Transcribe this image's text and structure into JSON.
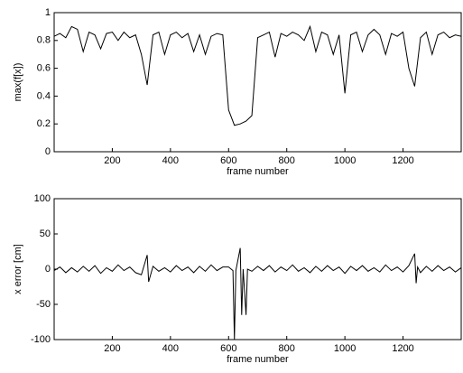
{
  "chart_data": [
    {
      "type": "line",
      "xlabel": "frame number",
      "ylabel": "max(f[x])",
      "xlim": [
        0,
        1400
      ],
      "ylim": [
        0,
        1
      ],
      "xticks": [
        200,
        400,
        600,
        800,
        1000,
        1200
      ],
      "yticks": [
        0,
        0.2,
        0.4,
        0.6,
        0.8,
        1
      ],
      "x": [
        0,
        20,
        40,
        60,
        80,
        100,
        120,
        140,
        160,
        180,
        200,
        220,
        240,
        260,
        280,
        300,
        320,
        340,
        360,
        380,
        400,
        420,
        440,
        460,
        480,
        500,
        520,
        540,
        560,
        580,
        600,
        620,
        640,
        660,
        680,
        700,
        720,
        740,
        760,
        780,
        800,
        820,
        840,
        860,
        880,
        900,
        920,
        940,
        960,
        980,
        1000,
        1020,
        1040,
        1060,
        1080,
        1100,
        1120,
        1140,
        1160,
        1180,
        1200,
        1220,
        1240,
        1260,
        1280,
        1300,
        1320,
        1340,
        1360,
        1380,
        1400
      ],
      "series": [
        {
          "color": "#000000",
          "values": [
            0.83,
            0.85,
            0.82,
            0.9,
            0.88,
            0.72,
            0.86,
            0.84,
            0.74,
            0.85,
            0.86,
            0.8,
            0.86,
            0.82,
            0.84,
            0.7,
            0.48,
            0.84,
            0.86,
            0.7,
            0.84,
            0.86,
            0.82,
            0.85,
            0.72,
            0.84,
            0.7,
            0.83,
            0.85,
            0.84,
            0.3,
            0.19,
            0.2,
            0.22,
            0.26,
            0.82,
            0.84,
            0.86,
            0.68,
            0.85,
            0.83,
            0.86,
            0.84,
            0.8,
            0.9,
            0.72,
            0.86,
            0.84,
            0.7,
            0.84,
            0.42,
            0.84,
            0.86,
            0.72,
            0.84,
            0.88,
            0.84,
            0.7,
            0.85,
            0.83,
            0.86,
            0.6,
            0.47,
            0.82,
            0.86,
            0.7,
            0.84,
            0.86,
            0.82,
            0.84,
            0.83
          ]
        }
      ]
    },
    {
      "type": "line",
      "xlabel": "frame number",
      "ylabel": "x error [cm]",
      "xlim": [
        0,
        1400
      ],
      "ylim": [
        -100,
        100
      ],
      "xticks": [
        200,
        400,
        600,
        800,
        1000,
        1200
      ],
      "yticks": [
        -100,
        -50,
        0,
        50,
        100
      ],
      "x": [
        0,
        20,
        40,
        60,
        80,
        100,
        120,
        140,
        160,
        180,
        200,
        220,
        240,
        260,
        280,
        300,
        320,
        325,
        340,
        360,
        380,
        400,
        420,
        440,
        460,
        480,
        500,
        520,
        540,
        560,
        580,
        600,
        615,
        620,
        625,
        640,
        645,
        650,
        660,
        665,
        680,
        700,
        720,
        740,
        760,
        780,
        800,
        820,
        840,
        860,
        880,
        900,
        920,
        940,
        960,
        980,
        1000,
        1020,
        1040,
        1060,
        1080,
        1100,
        1120,
        1140,
        1160,
        1180,
        1200,
        1220,
        1240,
        1245,
        1250,
        1260,
        1280,
        1300,
        1320,
        1340,
        1360,
        1380,
        1400
      ],
      "series": [
        {
          "color": "#000000",
          "values": [
            -2,
            3,
            -5,
            2,
            -4,
            4,
            -3,
            5,
            -6,
            2,
            -3,
            6,
            -2,
            3,
            -5,
            -8,
            20,
            -18,
            4,
            -3,
            2,
            -4,
            5,
            -2,
            3,
            -5,
            4,
            -3,
            6,
            -2,
            3,
            3,
            -2,
            -100,
            -2,
            30,
            -65,
            0,
            -65,
            0,
            -3,
            4,
            -2,
            5,
            -4,
            3,
            -2,
            6,
            -3,
            2,
            -5,
            4,
            -3,
            5,
            -2,
            3,
            -6,
            4,
            -2,
            5,
            -3,
            2,
            -4,
            6,
            -2,
            3,
            -4,
            5,
            22,
            -20,
            3,
            -5,
            4,
            -3,
            5,
            -2,
            3,
            -4,
            2
          ]
        }
      ]
    }
  ]
}
